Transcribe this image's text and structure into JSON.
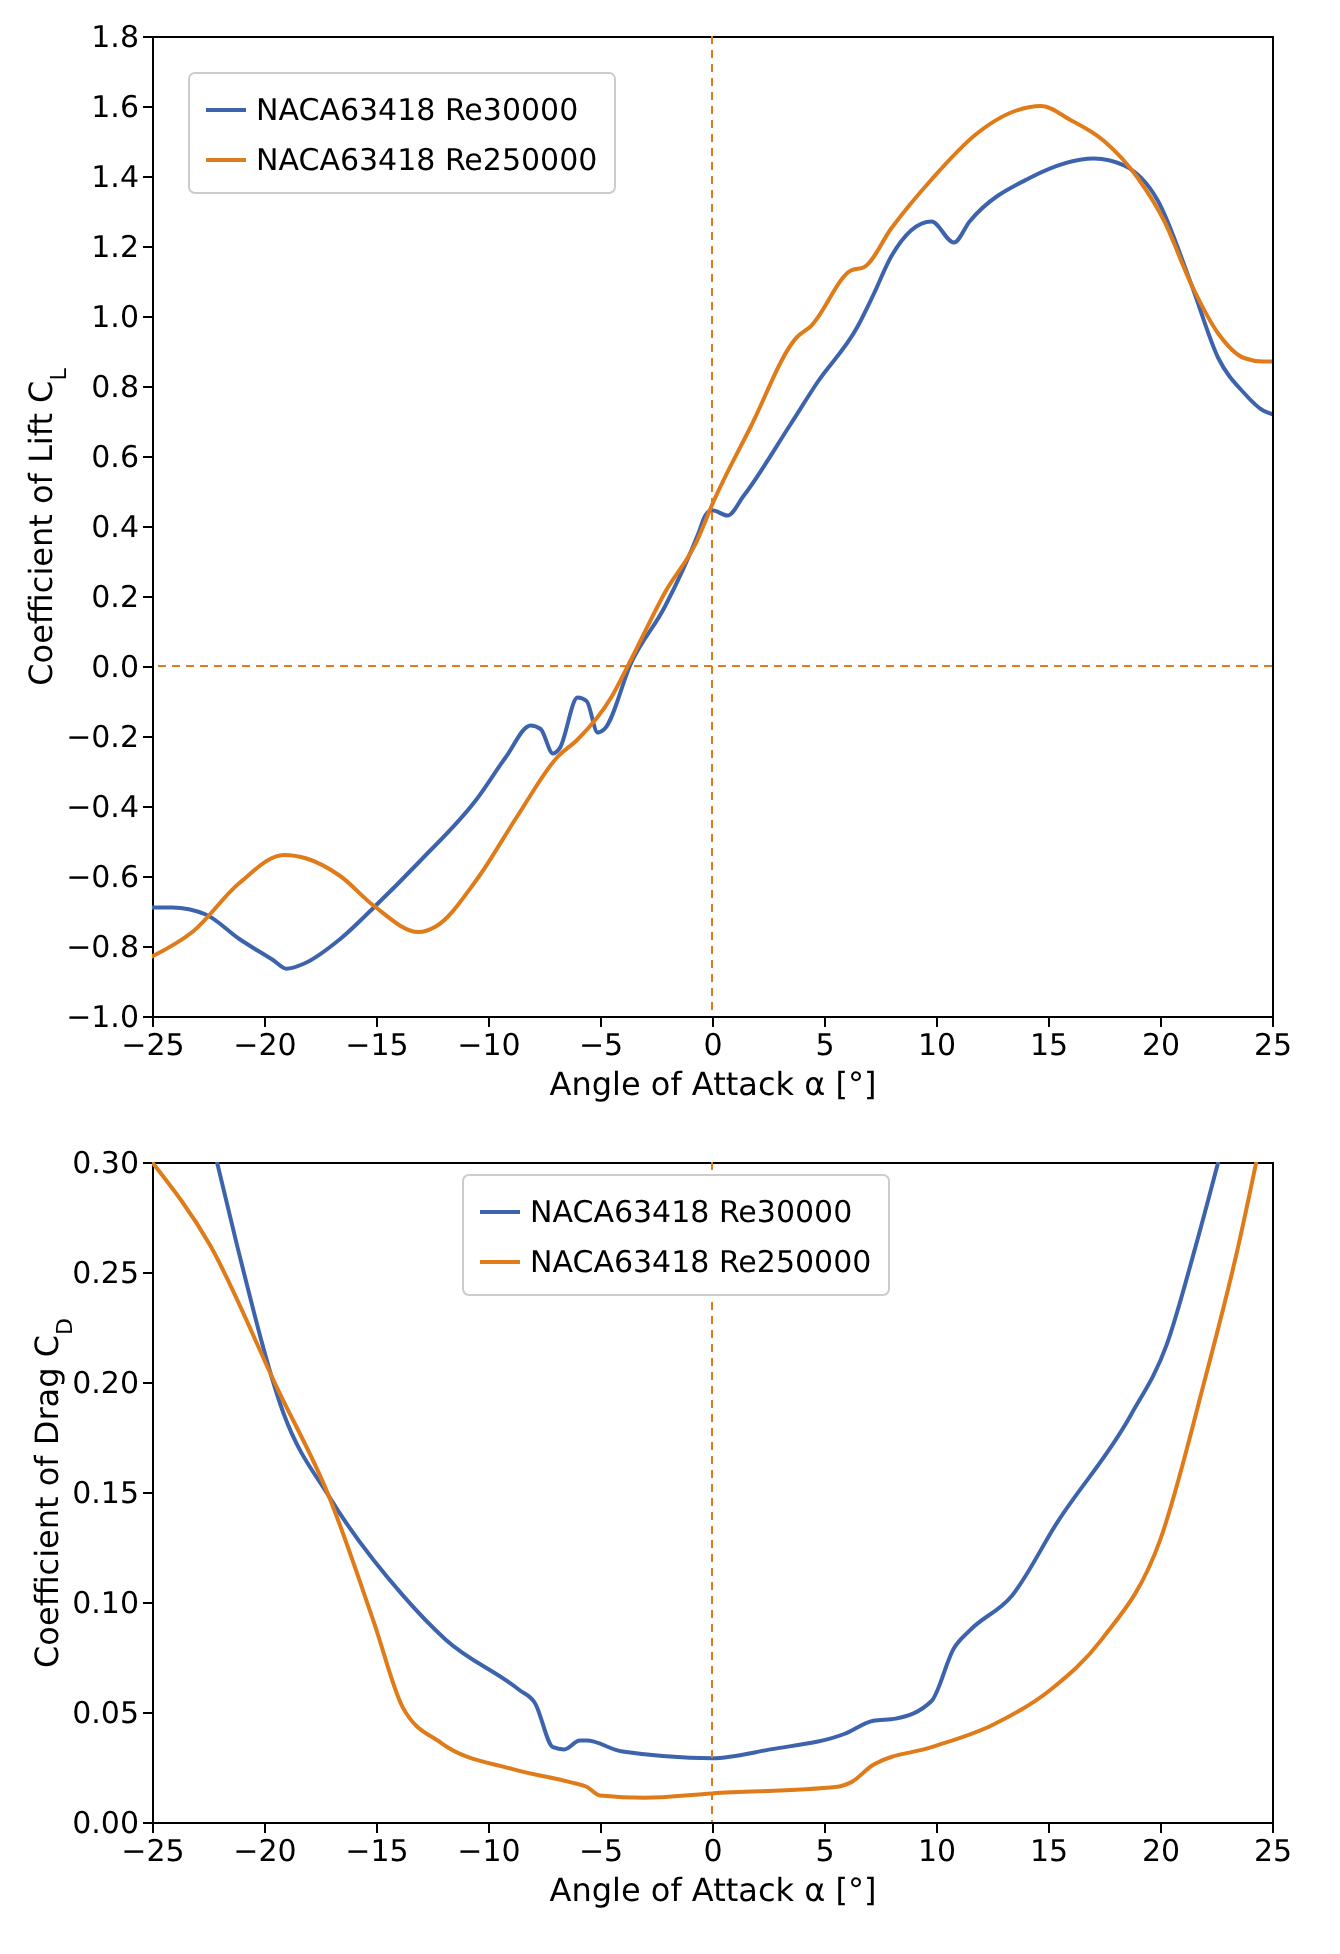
{
  "chart_data": [
    {
      "type": "line",
      "xlabel": "Angle of Attack α [°]",
      "ylabel": "Coefficient of Lift C$_{L}$",
      "legend": "top left",
      "xlim": [
        -25,
        25
      ],
      "ylim": [
        -1.0,
        1.8
      ],
      "xticks": [
        {
          "value": -25,
          "label": "−25"
        },
        {
          "value": -20,
          "label": "−20"
        },
        {
          "value": -15,
          "label": "−15"
        },
        {
          "value": -10,
          "label": "−10"
        },
        {
          "value": -5,
          "label": "−5"
        },
        0,
        5,
        10,
        15,
        20,
        25
      ],
      "yticks": [
        {
          "value": -1.0,
          "label": "−1.0"
        },
        {
          "value": -0.8,
          "label": "−0.8"
        },
        {
          "value": -0.6,
          "label": "−0.6"
        },
        {
          "value": -0.4,
          "label": "−0.4"
        },
        {
          "value": -0.2,
          "label": "−0.2"
        },
        {
          "value": 0,
          "label": "0.0"
        },
        {
          "value": 0.2,
          "label": "0.2"
        },
        {
          "value": 0.4,
          "label": "0.4"
        },
        {
          "value": 0.6,
          "label": "0.6"
        },
        {
          "value": 0.8,
          "label": "0.8"
        },
        {
          "value": 1.0,
          "label": "1.0"
        },
        {
          "value": 1.2,
          "label": "1.2"
        },
        {
          "value": 1.4,
          "label": "1.4"
        },
        {
          "value": 1.6,
          "label": "1.6"
        },
        {
          "value": 1.8,
          "label": "1.8"
        }
      ],
      "ref_lines": [
        {
          "axis": "x",
          "value": 0,
          "color": "#e07b1a",
          "line_style": "dashed"
        },
        {
          "axis": "y",
          "value": 0,
          "color": "#e07b1a",
          "line_style": "dashed"
        }
      ],
      "series": [
        {
          "name": "NACA63418 Re30000",
          "color": "#3d63ad",
          "x": [
            -25,
            -24.1,
            -22.6,
            -21.1,
            -19.6,
            -19,
            -18.2,
            -16.6,
            -15.1,
            -13,
            -10.5,
            -9.2,
            -8.1,
            -7.65,
            -7.1,
            -6.8,
            -6.0,
            -5.6,
            -5.1,
            -4.8,
            -3.6,
            -2.1,
            -0.6,
            -0.3,
            0,
            0.7,
            1.4,
            3.5,
            4.7,
            6.5,
            7.2,
            8.0,
            9.8,
            10.8,
            11.5,
            14.2,
            17.05,
            18.4,
            19.9,
            21.4,
            22.6,
            23.75,
            24.6,
            25
          ],
          "values": [
            -0.69,
            -0.69,
            -0.71,
            -0.78,
            -0.84,
            -0.865,
            -0.85,
            -0.78,
            -0.69,
            -0.555,
            -0.38,
            -0.26,
            -0.17,
            -0.18,
            -0.25,
            -0.235,
            -0.09,
            -0.1,
            -0.19,
            -0.18,
            0.01,
            0.17,
            0.38,
            0.43,
            0.445,
            0.43,
            0.485,
            0.69,
            0.81,
            0.97,
            1.06,
            1.17,
            1.27,
            1.21,
            1.27,
            1.395,
            1.45,
            1.43,
            1.33,
            1.09,
            0.88,
            0.78,
            0.73,
            0.72
          ]
        },
        {
          "name": "NACA63418 Re250000",
          "color": "#e07b1a",
          "x": [
            -25,
            -23.2,
            -21.1,
            -19.1,
            -18.1,
            -16.6,
            -15.1,
            -13.1,
            -12.35,
            -10.5,
            -8.7,
            -6.9,
            -6.0,
            -4.5,
            -3.6,
            -2.1,
            -0.65,
            0,
            1.7,
            3.8,
            4.4,
            6.2,
            6.8,
            8.0,
            9.8,
            11.8,
            13.3,
            14.7,
            16.0,
            17.5,
            19.0,
            20.2,
            21.4,
            22.6,
            23.75,
            24.6,
            25
          ],
          "values": [
            -0.83,
            -0.76,
            -0.62,
            -0.54,
            -0.55,
            -0.6,
            -0.685,
            -0.76,
            -0.745,
            -0.61,
            -0.43,
            -0.26,
            -0.21,
            -0.09,
            0.02,
            0.21,
            0.36,
            0.46,
            0.68,
            0.94,
            0.97,
            1.13,
            1.14,
            1.25,
            1.39,
            1.52,
            1.58,
            1.6,
            1.56,
            1.5,
            1.395,
            1.27,
            1.09,
            0.95,
            0.88,
            0.87,
            0.87
          ]
        }
      ]
    },
    {
      "type": "line",
      "xlabel": "Angle of Attack α [°]",
      "ylabel": "Coefficient of Drag C$_{D}$",
      "legend": "top",
      "xlim": [
        -25,
        25
      ],
      "ylim": [
        0,
        0.3
      ],
      "xticks": [
        {
          "value": -25,
          "label": "−25"
        },
        {
          "value": -20,
          "label": "−20"
        },
        {
          "value": -15,
          "label": "−15"
        },
        {
          "value": -10,
          "label": "−10"
        },
        {
          "value": -5,
          "label": "−5"
        },
        0,
        5,
        10,
        15,
        20,
        25
      ],
      "yticks": [
        {
          "value": 0,
          "label": "0.00"
        },
        {
          "value": 0.05,
          "label": "0.05"
        },
        {
          "value": 0.1,
          "label": "0.10"
        },
        {
          "value": 0.15,
          "label": "0.15"
        },
        {
          "value": 0.2,
          "label": "0.20"
        },
        {
          "value": 0.25,
          "label": "0.25"
        },
        {
          "value": 0.3,
          "label": "0.30"
        }
      ],
      "ref_lines": [
        {
          "axis": "x",
          "value": 0,
          "color": "#e07b1a",
          "line_style": "dashed"
        }
      ],
      "series": [
        {
          "name": "NACA63418 Re30000",
          "color": "#3d63ad",
          "x": [
            -22.1,
            -21.2,
            -19.1,
            -17.1,
            -13.8,
            -11.9,
            -8.6,
            -7.9,
            -7.1,
            -6.6,
            -5.9,
            -5.6,
            -4.0,
            0,
            2.6,
            5.9,
            7.2,
            8.2,
            9.8,
            10.8,
            11.5,
            13.4,
            15.4,
            18.7,
            20.3,
            21.6,
            22.6
          ],
          "values": [
            0.3,
            0.262,
            0.185,
            0.148,
            0.103,
            0.083,
            0.06,
            0.054,
            0.034,
            0.033,
            0.037,
            0.037,
            0.032,
            0.029,
            0.033,
            0.04,
            0.046,
            0.047,
            0.055,
            0.079,
            0.087,
            0.103,
            0.136,
            0.185,
            0.217,
            0.262,
            0.3
          ]
        },
        {
          "name": "NACA63418 Re250000",
          "color": "#e07b1a",
          "x": [
            -25,
            -22.4,
            -19.4,
            -17.1,
            -15.1,
            -13.8,
            -12.1,
            -8.9,
            -6.3,
            -5.6,
            -5.0,
            -3.0,
            0,
            5.6,
            6.2,
            7.2,
            9.8,
            12.5,
            15.1,
            17.4,
            20.0,
            22.0,
            23.5,
            24.3
          ],
          "values": [
            0.3,
            0.262,
            0.197,
            0.148,
            0.091,
            0.052,
            0.036,
            0.024,
            0.018,
            0.016,
            0.012,
            0.011,
            0.013,
            0.016,
            0.018,
            0.026,
            0.034,
            0.044,
            0.06,
            0.083,
            0.128,
            0.201,
            0.262,
            0.3
          ]
        }
      ]
    }
  ]
}
